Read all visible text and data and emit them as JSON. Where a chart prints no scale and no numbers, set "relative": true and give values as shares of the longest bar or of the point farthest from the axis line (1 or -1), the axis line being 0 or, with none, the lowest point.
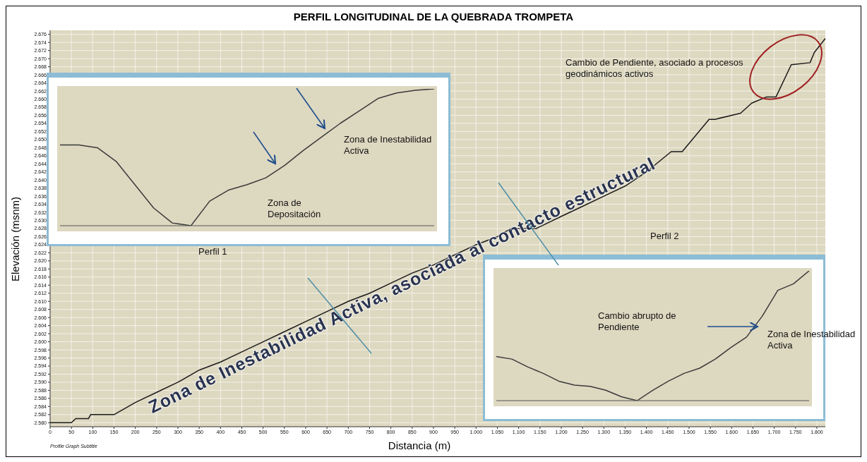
{
  "chart_data": [
    {
      "type": "line",
      "title": "PERFIL LONGITUDINAL DE LA QUEBRADA TROMPETA",
      "xlabel": "Distancia (m)",
      "ylabel": "Elevación (msnm)",
      "x": [
        0,
        50,
        60,
        90,
        95,
        150,
        200,
        250,
        300,
        350,
        400,
        450,
        500,
        550,
        600,
        650,
        700,
        750,
        800,
        850,
        900,
        950,
        1000,
        1050,
        1082,
        1141,
        1200,
        1250,
        1300,
        1350,
        1400,
        1458,
        1484,
        1547,
        1561,
        1621,
        1647,
        1681,
        1704,
        1740,
        1784,
        1794,
        1820
      ],
      "values": [
        2580,
        2580,
        2581,
        2581,
        2582,
        2582,
        2585,
        2587.5,
        2590,
        2593,
        2595,
        2597.5,
        2600,
        2602.5,
        2605,
        2607.5,
        2610,
        2612,
        2614.5,
        2617,
        2619,
        2621.5,
        2624,
        2626,
        2628,
        2628,
        2631,
        2633.5,
        2636,
        2638.5,
        2642,
        2647,
        2647,
        2655,
        2655,
        2656.5,
        2659,
        2660.5,
        2660.5,
        2668.5,
        2669,
        2671.5,
        2675
      ],
      "color": "#1a1a1a",
      "xlim": [
        0,
        1820
      ],
      "ylim": [
        2579,
        2677
      ],
      "xticks": [
        0,
        50,
        100,
        150,
        200,
        250,
        300,
        350,
        400,
        450,
        500,
        550,
        600,
        650,
        700,
        750,
        800,
        850,
        900,
        950,
        {
          "value": 1000,
          "label": "1.000"
        },
        {
          "value": 1050,
          "label": "1.050"
        },
        {
          "value": 1100,
          "label": "1.100"
        },
        {
          "value": 1150,
          "label": "1.150"
        },
        {
          "value": 1200,
          "label": "1.200"
        },
        {
          "value": 1250,
          "label": "1.250"
        },
        {
          "value": 1300,
          "label": "1.300"
        },
        {
          "value": 1350,
          "label": "1.350"
        },
        {
          "value": 1400,
          "label": "1.400"
        },
        {
          "value": 1450,
          "label": "1.450"
        },
        {
          "value": 1500,
          "label": "1.500"
        },
        {
          "value": 1550,
          "label": "1.550"
        },
        {
          "value": 1600,
          "label": "1.600"
        },
        {
          "value": 1650,
          "label": "1.650"
        },
        {
          "value": 1700,
          "label": "1.700"
        },
        {
          "value": 1750,
          "label": "1.750"
        },
        {
          "value": 1800,
          "label": "1.800"
        }
      ],
      "yticks": [
        {
          "value": 2580,
          "label": "2.580"
        },
        {
          "value": 2582,
          "label": "2.582"
        },
        {
          "value": 2584,
          "label": "2.584"
        },
        {
          "value": 2586,
          "label": "2.586"
        },
        {
          "value": 2588,
          "label": "2.588"
        },
        {
          "value": 2590,
          "label": "2.590"
        },
        {
          "value": 2592,
          "label": "2.592"
        },
        {
          "value": 2594,
          "label": "2.594"
        },
        {
          "value": 2596,
          "label": "2.596"
        },
        {
          "value": 2598,
          "label": "2.598"
        },
        {
          "value": 2600,
          "label": "2.600"
        },
        {
          "value": 2602,
          "label": "2.602"
        },
        {
          "value": 2604,
          "label": "2.604"
        },
        {
          "value": 2606,
          "label": "2.606"
        },
        {
          "value": 2608,
          "label": "2.608"
        },
        {
          "value": 2610,
          "label": "2.610"
        },
        {
          "value": 2612,
          "label": "2.612"
        },
        {
          "value": 2614,
          "label": "2.614"
        },
        {
          "value": 2616,
          "label": "2.616"
        },
        {
          "value": 2618,
          "label": "2.618"
        },
        {
          "value": 2620,
          "label": "2.620"
        },
        {
          "value": 2622,
          "label": "2.622"
        },
        {
          "value": 2624,
          "label": "2.624"
        },
        {
          "value": 2626,
          "label": "2.626"
        },
        {
          "value": 2628,
          "label": "2.628"
        },
        {
          "value": 2630,
          "label": "2.630"
        },
        {
          "value": 2632,
          "label": "2.632"
        },
        {
          "value": 2634,
          "label": "2.634"
        },
        {
          "value": 2636,
          "label": "2.636"
        },
        {
          "value": 2638,
          "label": "2.638"
        },
        {
          "value": 2640,
          "label": "2.640"
        },
        {
          "value": 2642,
          "label": "2.642"
        },
        {
          "value": 2644,
          "label": "2.644"
        },
        {
          "value": 2646,
          "label": "2.646"
        },
        {
          "value": 2648,
          "label": "2.648"
        },
        {
          "value": 2650,
          "label": "2.650"
        },
        {
          "value": 2652,
          "label": "2.652"
        },
        {
          "value": 2654,
          "label": "2.654"
        },
        {
          "value": 2656,
          "label": "2.656"
        },
        {
          "value": 2658,
          "label": "2.658"
        },
        {
          "value": 2660,
          "label": "2.660"
        },
        {
          "value": 2662,
          "label": "2.662"
        },
        {
          "value": 2664,
          "label": "2.664"
        },
        {
          "value": 2666,
          "label": "2.666"
        },
        {
          "value": 2668,
          "label": "2.668"
        },
        {
          "value": 2670,
          "label": "2.670"
        },
        {
          "value": 2672,
          "label": "2.672"
        },
        {
          "value": 2674,
          "label": "2.674"
        },
        {
          "value": 2676,
          "label": "2.676"
        }
      ],
      "grid": true,
      "annotations": [
        "Cambio de Pendiente, asociado a procesos geodinámicos activos",
        "Zona de Inestabilidad Activa, asociada al contacto estructural",
        "Perfil 1",
        "Perfil 2",
        "Profile Graph Subtitle"
      ]
    },
    {
      "type": "line",
      "relative": true,
      "tick_labels": false,
      "color": "#3a3a3a",
      "categories": [
        null,
        null,
        null,
        null,
        null,
        null,
        null,
        null,
        null,
        null,
        null,
        null,
        null,
        null,
        null,
        null,
        null,
        null,
        null,
        null,
        null
      ],
      "values": [
        0.59,
        0.59,
        0.57,
        0.47,
        0.3,
        0.13,
        0.02,
        0,
        0.18,
        0.26,
        0.3,
        0.35,
        0.44,
        0.55,
        0.65,
        0.75,
        0.84,
        0.93,
        0.97,
        0.99,
        1
      ],
      "annotations": [
        "Zona de Inestabilidad Activa",
        "Zona de Depositación"
      ]
    },
    {
      "type": "line",
      "relative": true,
      "tick_labels": false,
      "color": "#3a3a3a",
      "categories": [
        null,
        null,
        null,
        null,
        null,
        null,
        null,
        null,
        null,
        null,
        null,
        null,
        null,
        null,
        null,
        null,
        null,
        null,
        null,
        null,
        null
      ],
      "values": [
        0.34,
        0.32,
        0.26,
        0.21,
        0.15,
        0.12,
        0.11,
        0.08,
        0.03,
        0,
        0.08,
        0.15,
        0.21,
        0.25,
        0.32,
        0.41,
        0.49,
        0.65,
        0.85,
        0.9,
        1
      ],
      "annotations": [
        "Cambio abrupto de Pendiente",
        "Zona de Inestabilidad Activa"
      ]
    }
  ]
}
